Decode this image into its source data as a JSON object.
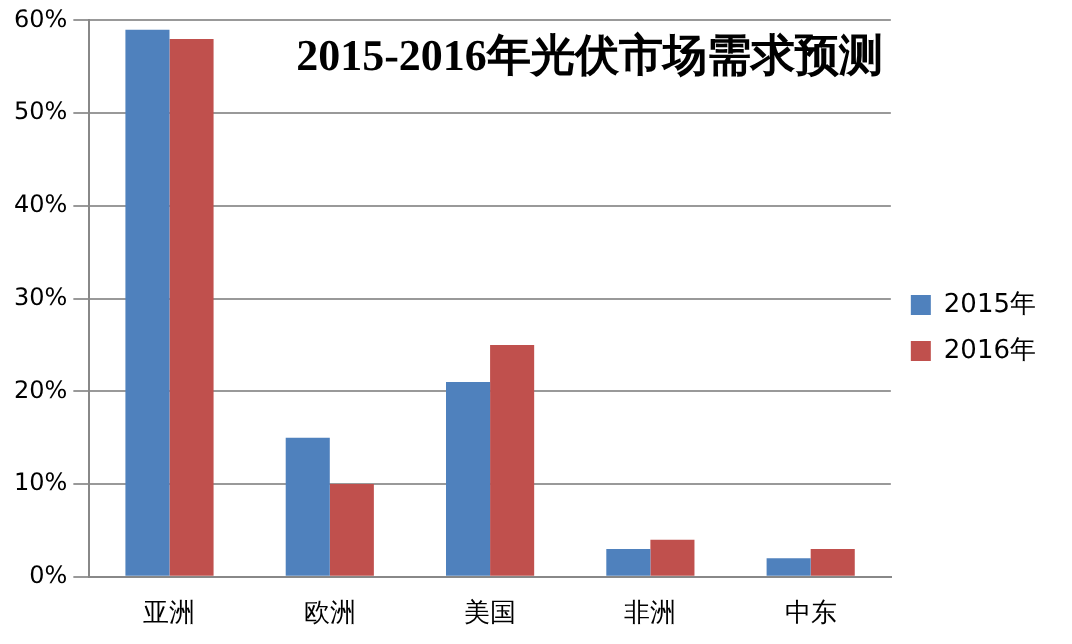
{
  "chart_data": {
    "type": "bar",
    "title": "2015-2016年光伏市场需求预测",
    "categories": [
      "亚洲",
      "欧洲",
      "美国",
      "非洲",
      "中东"
    ],
    "series": [
      {
        "name": "2015年",
        "color": "#4f81bd",
        "values": [
          59,
          15,
          21,
          3,
          2
        ]
      },
      {
        "name": "2016年",
        "color": "#c0504d",
        "values": [
          58,
          10,
          25,
          4,
          3
        ]
      }
    ],
    "ylim": [
      0,
      60
    ],
    "yticks": [
      {
        "value": 0,
        "label": "0%"
      },
      {
        "value": 10,
        "label": "10%"
      },
      {
        "value": 20,
        "label": "20%"
      },
      {
        "value": 30,
        "label": "30%"
      },
      {
        "value": 40,
        "label": "40%"
      },
      {
        "value": 50,
        "label": "50%"
      },
      {
        "value": 60,
        "label": "60%"
      }
    ],
    "grid": "y",
    "legend": "right"
  }
}
